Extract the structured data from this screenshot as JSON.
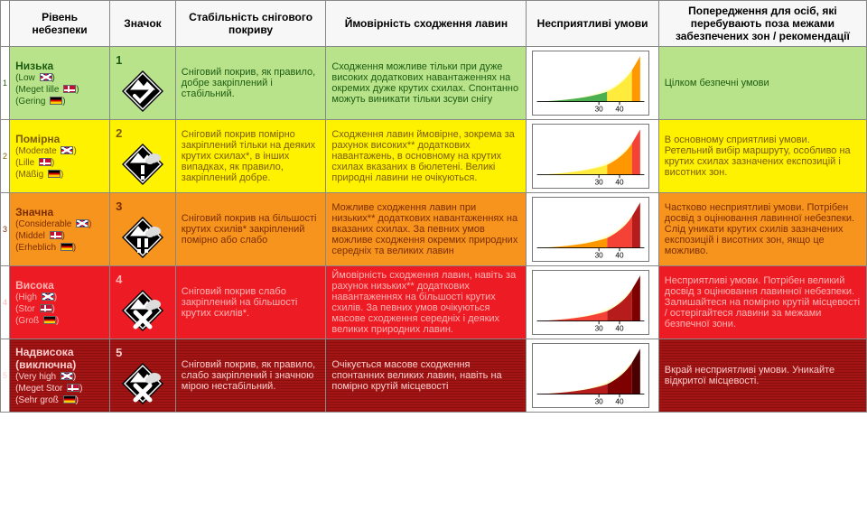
{
  "headers": {
    "level": "Рівень небезпеки",
    "icon": "Значок",
    "stability": "Стабільність снігового покриву",
    "probability": "Ймовірність сходження лавин",
    "conditions": "Несприятливі умови",
    "warning": "Попередження для осіб, які перебувають поза межами забезпечених зон / рекомендації"
  },
  "col_widths": {
    "rownum": 10,
    "level": 110,
    "icon": 72,
    "stability": 165,
    "probability": 220,
    "conditions": 145,
    "warning": 228
  },
  "chart_axis": {
    "ticks": [
      "30",
      "40"
    ]
  },
  "levels": [
    {
      "num": "1",
      "row_bg": "#b9e38a",
      "text_color": "#1c5c12",
      "name": "Низька",
      "translations": [
        {
          "text": "Low",
          "flag": "uk"
        },
        {
          "text": "Meget lille",
          "flag": "dk"
        },
        {
          "text": "Gering",
          "flag": "de"
        }
      ],
      "stability": "Сніговий покрив, як правило, добре закріплений і стабільний.",
      "probability": "Сходження можливе тільки при дуже високих додаткових навантаженнях на окремих дуже крутих схилах. Спонтанно можуть виникати тільки зсуви снігу",
      "warning": "Цілком безпечні умови",
      "icon_symbol": "check",
      "curve_colors": {
        "dominant": "#4caf50",
        "mid": "#ffeb3b",
        "tip": "#ff9800"
      }
    },
    {
      "num": "2",
      "row_bg": "#fff200",
      "text_color": "#7a5c00",
      "name": "Помірна",
      "translations": [
        {
          "text": "Moderate",
          "flag": "uk"
        },
        {
          "text": "Lille",
          "flag": "dk"
        },
        {
          "text": "Mäßig",
          "flag": "de"
        }
      ],
      "stability": "Сніговий покрив помірно закріплений тільки на деяких крутих схилах*, в інших випадках, як правило, закріплений добре.",
      "probability": "Сходження лавин ймовірне, зокрема за рахунок високих** додаткових навантажень, в основному на крутих схилах вказаних в бюлетені. Великі природні лавини не очікуються.",
      "warning": "В основному сприятливі умови. Ретельний вибір маршруту, особливо на крутих схилах зазначених експозицій і висотних зон.",
      "icon_symbol": "exclaim1",
      "curve_colors": {
        "dominant": "#ffeb3b",
        "mid": "#ff9800",
        "tip": "#f44336"
      }
    },
    {
      "num": "3",
      "row_bg": "#f7941d",
      "text_color": "#7c2d00",
      "name": "Значна",
      "translations": [
        {
          "text": "Considerable",
          "flag": "uk"
        },
        {
          "text": "Middel",
          "flag": "dk"
        },
        {
          "text": "Erheblich",
          "flag": "de"
        }
      ],
      "stability": "Сніговий покрив на більшості крутих схилів* закріплений помірно або слабо",
      "probability": "Можливе сходження лавин при низьких** додаткових навантаженнях на вказаних схилах. За певних умов можливе сходження окремих природних середніх та великих лавин",
      "warning": "Частково несприятливі умови. Потрібен досвід з оцінювання лавинної небезпеки. Слід уникати крутих схилів зазначених експозицій і висотних зон, якщо це можливо.",
      "icon_symbol": "exclaim2",
      "curve_colors": {
        "dominant": "#ff9800",
        "mid": "#f44336",
        "tip": "#b71c1c"
      }
    },
    {
      "num": "4",
      "row_bg": "#ed1c24",
      "text_color": "#ffb3b3",
      "name": "Висока",
      "translations": [
        {
          "text": "High",
          "flag": "uk"
        },
        {
          "text": "Stor",
          "flag": "dk"
        },
        {
          "text": "Groß",
          "flag": "de"
        }
      ],
      "stability": "Сніговий покрив слабо закріплений на більшості крутих схилів*.",
      "probability": "Ймовірність сходження лавин, навіть за рахунок низьких** додаткових навантаженнях на більшості крутих схилів. За певних умов очікуються масове сходження середніх і деяких великих природних лавин.",
      "warning": "Несприятливі умови. Потрібен великий досвід з оцінювання лавинної небезпеки. Залишайтеся на помірно крутій місцевості / остерігайтеся лавини за межами безпечної зони.",
      "icon_symbol": "cross",
      "curve_colors": {
        "dominant": "#f44336",
        "mid": "#b71c1c",
        "tip": "#7f0000"
      }
    },
    {
      "num": "5",
      "row_bg": "#a31515",
      "row_pattern": true,
      "text_color": "#ffcccc",
      "name": "Надвисока (виключна)",
      "translations": [
        {
          "text": "Very high",
          "flag": "uk"
        },
        {
          "text": "Meget Stor",
          "flag": "dk"
        },
        {
          "text": "Sehr groß",
          "flag": "de"
        }
      ],
      "stability": "Сніговий покрив, як правило, слабо закріплений і значною мірою нестабільний.",
      "probability": "Очікується масове сходження спонтанних великих лавин, навіть на помірно крутій місцевості",
      "warning": "Вкрай несприятливі умови. Уникайте відкритої місцевості.",
      "icon_symbol": "cross",
      "curve_colors": {
        "dominant": "#b71c1c",
        "mid": "#7f0000",
        "tip": "#4a0000"
      }
    }
  ]
}
